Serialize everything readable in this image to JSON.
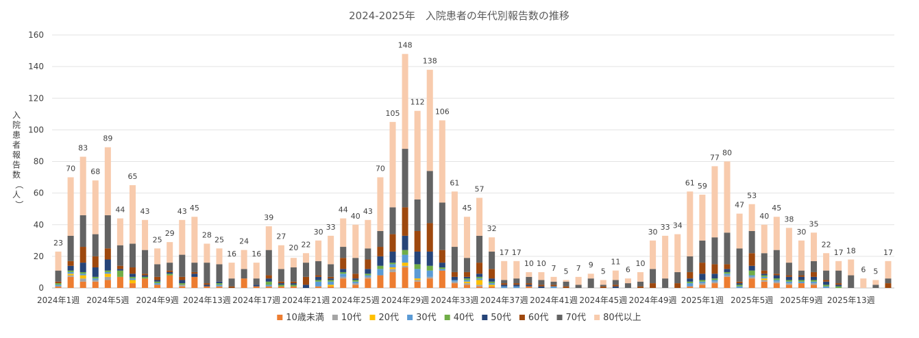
{
  "chart_data": {
    "type": "bar",
    "stacked": true,
    "title": "2024-2025年　入院患者の年代別報告数の推移",
    "ylabel": "入院患者報告数（人）",
    "xlabel": "",
    "ylim": [
      0,
      160
    ],
    "yticks": [
      0,
      20,
      40,
      60,
      80,
      100,
      120,
      140,
      160
    ],
    "grid": true,
    "legend_position": "bottom",
    "x_tick_labels": [
      "2024年1週",
      "2024年5週",
      "2024年9週",
      "2024年13週",
      "2024年17週",
      "2024年21週",
      "2024年25週",
      "2024年29週",
      "2024年33週",
      "2024年37週",
      "2024年41週",
      "2024年45週",
      "2024年49週",
      "2025年1週",
      "2025年5週",
      "2025年9週",
      "2025年13週"
    ],
    "totals": [
      23,
      70,
      83,
      68,
      89,
      44,
      65,
      43,
      25,
      29,
      43,
      45,
      28,
      25,
      16,
      24,
      16,
      39,
      27,
      20,
      22,
      30,
      33,
      44,
      40,
      43,
      70,
      105,
      148,
      112,
      138,
      106,
      61,
      45,
      57,
      32,
      17,
      17,
      10,
      10,
      7,
      5,
      7,
      9,
      5,
      11,
      6,
      10,
      30,
      33,
      34,
      61,
      59,
      77,
      80,
      47,
      53,
      40,
      45,
      38,
      30,
      35,
      22,
      17,
      18,
      6,
      5,
      17
    ],
    "series": [
      {
        "name": "10歳未満",
        "color": "#ED7D31",
        "values": [
          1,
          7,
          4,
          4,
          5,
          7,
          3,
          6,
          2,
          8,
          1,
          7,
          1,
          1,
          0,
          6,
          1,
          1,
          1,
          1,
          0,
          1,
          1,
          6,
          2,
          6,
          8,
          10,
          13,
          4,
          6,
          11,
          3,
          2,
          1,
          1,
          0,
          0,
          1,
          0,
          0,
          0,
          0,
          0,
          0,
          0,
          0,
          0,
          0,
          0,
          0,
          1,
          2,
          3,
          7,
          0,
          6,
          4,
          3,
          2,
          3,
          2,
          0,
          0,
          0,
          0,
          0,
          0
        ]
      },
      {
        "name": "10代",
        "color": "#A5A5A5",
        "values": [
          0,
          1,
          2,
          1,
          2,
          0,
          0,
          0,
          0,
          0,
          1,
          0,
          0,
          0,
          0,
          0,
          0,
          0,
          0,
          0,
          0,
          0,
          0,
          1,
          1,
          1,
          0,
          2,
          1,
          1,
          1,
          0,
          1,
          1,
          1,
          0,
          0,
          0,
          0,
          0,
          0,
          0,
          0,
          0,
          0,
          0,
          0,
          0,
          0,
          0,
          0,
          0,
          1,
          1,
          1,
          0,
          1,
          1,
          1,
          1,
          0,
          1,
          0,
          0,
          0,
          0,
          0,
          0
        ]
      },
      {
        "name": "20代",
        "color": "#FFC000",
        "values": [
          0,
          1,
          2,
          0,
          2,
          0,
          2,
          0,
          0,
          0,
          0,
          0,
          0,
          0,
          0,
          0,
          0,
          0,
          0,
          0,
          0,
          0,
          1,
          0,
          0,
          0,
          0,
          1,
          2,
          1,
          0,
          0,
          0,
          1,
          3,
          1,
          0,
          0,
          0,
          0,
          0,
          0,
          0,
          0,
          0,
          0,
          0,
          0,
          0,
          0,
          0,
          0,
          0,
          0,
          0,
          0,
          0,
          1,
          0,
          0,
          0,
          0,
          0,
          0,
          0,
          0,
          0,
          0
        ]
      },
      {
        "name": "30代",
        "color": "#5B9BD5",
        "values": [
          1,
          1,
          1,
          1,
          1,
          0,
          1,
          0,
          1,
          0,
          0,
          0,
          0,
          1,
          0,
          0,
          0,
          1,
          0,
          0,
          0,
          3,
          2,
          2,
          1,
          1,
          4,
          2,
          5,
          6,
          4,
          1,
          1,
          1,
          1,
          1,
          1,
          1,
          0,
          0,
          1,
          0,
          0,
          0,
          0,
          0,
          0,
          0,
          0,
          0,
          0,
          2,
          1,
          1,
          1,
          1,
          1,
          1,
          1,
          1,
          1,
          1,
          1,
          0,
          0,
          0,
          0,
          0
        ]
      },
      {
        "name": "40代",
        "color": "#70AD47",
        "values": [
          1,
          1,
          1,
          1,
          1,
          4,
          1,
          1,
          1,
          1,
          1,
          0,
          0,
          1,
          0,
          0,
          0,
          2,
          1,
          1,
          0,
          1,
          1,
          1,
          1,
          1,
          2,
          1,
          3,
          3,
          3,
          1,
          0,
          1,
          1,
          1,
          0,
          0,
          0,
          0,
          0,
          0,
          0,
          0,
          0,
          0,
          0,
          0,
          0,
          0,
          0,
          1,
          1,
          1,
          1,
          1,
          3,
          1,
          1,
          1,
          1,
          1,
          1,
          1,
          0,
          0,
          0,
          0
        ]
      },
      {
        "name": "50代",
        "color": "#264478",
        "values": [
          0,
          3,
          6,
          6,
          7,
          1,
          2,
          1,
          1,
          1,
          2,
          2,
          1,
          1,
          0,
          0,
          1,
          2,
          1,
          1,
          2,
          2,
          1,
          2,
          1,
          3,
          6,
          7,
          9,
          8,
          9,
          3,
          2,
          1,
          2,
          2,
          1,
          1,
          1,
          1,
          0,
          0,
          0,
          0,
          0,
          1,
          0,
          0,
          0,
          0,
          0,
          2,
          4,
          3,
          2,
          1,
          3,
          1,
          2,
          2,
          2,
          2,
          2,
          1,
          0,
          0,
          0,
          0
        ]
      },
      {
        "name": "60代",
        "color": "#9E480E",
        "values": [
          1,
          3,
          10,
          7,
          7,
          2,
          4,
          1,
          2,
          1,
          2,
          1,
          1,
          0,
          1,
          0,
          0,
          2,
          1,
          1,
          5,
          1,
          1,
          7,
          3,
          6,
          6,
          11,
          18,
          13,
          18,
          8,
          3,
          3,
          7,
          6,
          1,
          1,
          1,
          1,
          1,
          1,
          0,
          0,
          1,
          1,
          0,
          1,
          3,
          0,
          3,
          4,
          7,
          6,
          3,
          1,
          8,
          2,
          1,
          1,
          1,
          3,
          1,
          1,
          0,
          0,
          0,
          3
        ]
      },
      {
        "name": "70代",
        "color": "#636363",
        "values": [
          7,
          16,
          20,
          14,
          21,
          13,
          15,
          15,
          8,
          5,
          14,
          6,
          13,
          11,
          5,
          6,
          4,
          16,
          8,
          9,
          9,
          9,
          8,
          7,
          10,
          7,
          10,
          17,
          37,
          20,
          33,
          30,
          16,
          9,
          17,
          11,
          2,
          3,
          4,
          3,
          2,
          3,
          2,
          6,
          1,
          3,
          3,
          3,
          9,
          6,
          7,
          10,
          14,
          17,
          20,
          21,
          14,
          11,
          15,
          8,
          3,
          7,
          6,
          8,
          8,
          0,
          2,
          3
        ]
      },
      {
        "name": "80代以上",
        "color": "#F8CBAD",
        "values": [
          12,
          37,
          37,
          34,
          43,
          17,
          37,
          19,
          10,
          13,
          22,
          29,
          12,
          10,
          10,
          12,
          10,
          15,
          15,
          6,
          6,
          13,
          18,
          18,
          21,
          18,
          34,
          54,
          60,
          56,
          64,
          52,
          35,
          26,
          24,
          9,
          12,
          11,
          3,
          5,
          3,
          1,
          5,
          3,
          3,
          6,
          3,
          6,
          18,
          27,
          24,
          41,
          29,
          45,
          45,
          22,
          17,
          18,
          21,
          22,
          19,
          18,
          11,
          6,
          10,
          6,
          3,
          11
        ]
      }
    ]
  }
}
